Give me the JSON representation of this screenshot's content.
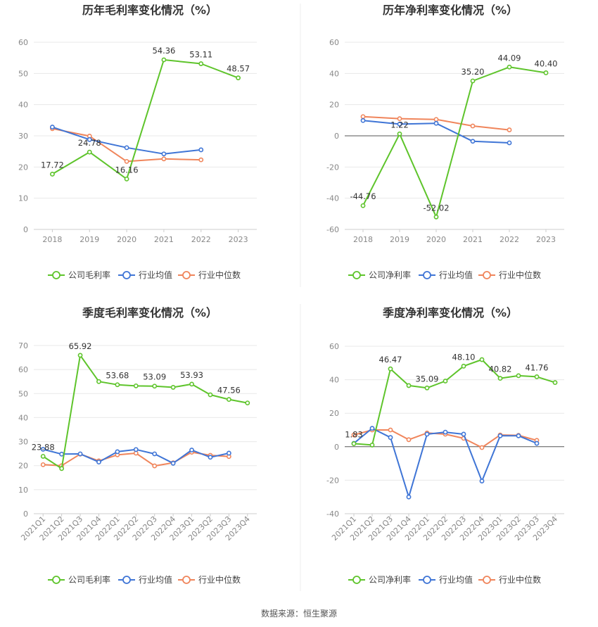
{
  "colors": {
    "company": "#5ec42b",
    "industry_avg": "#3f75d6",
    "industry_median": "#f0855b",
    "grid": "#e8e8e8",
    "zero_line": "#555555",
    "axis": "#cccccc"
  },
  "source": "数据来源：恒生聚源",
  "chart_data": [
    {
      "type": "line",
      "title": "历年毛利率变化情况（%）",
      "categories": [
        "2018",
        "2019",
        "2020",
        "2021",
        "2022",
        "2023"
      ],
      "ylim": [
        0,
        60
      ],
      "yticks": [
        0,
        10,
        20,
        30,
        40,
        50,
        60
      ],
      "grid": true,
      "legend_position": "bottom",
      "series": [
        {
          "name": "公司毛利率",
          "color": "#5ec42b",
          "values": [
            17.72,
            24.78,
            16.16,
            54.36,
            53.11,
            48.57
          ],
          "labels": [
            "17.72",
            "24.78",
            "16.16",
            "54.36",
            "53.11",
            "48.57"
          ]
        },
        {
          "name": "行业均值",
          "color": "#3f75d6",
          "values": [
            32.8,
            28.8,
            26.2,
            24.2,
            25.5,
            null
          ]
        },
        {
          "name": "行业中位数",
          "color": "#f0855b",
          "values": [
            32.3,
            29.9,
            21.8,
            22.6,
            22.3,
            null
          ]
        }
      ]
    },
    {
      "type": "line",
      "title": "历年净利率变化情况（%）",
      "categories": [
        "2018",
        "2019",
        "2020",
        "2021",
        "2022",
        "2023"
      ],
      "ylim": [
        -60,
        60
      ],
      "yticks": [
        -60,
        -40,
        -20,
        0,
        20,
        40,
        60
      ],
      "grid": true,
      "legend_position": "bottom",
      "series": [
        {
          "name": "公司净利率",
          "color": "#5ec42b",
          "values": [
            -44.76,
            1.22,
            -52.02,
            35.2,
            44.09,
            40.4
          ],
          "labels": [
            "-44.76",
            "1.22",
            "-52.02",
            "35.20",
            "44.09",
            "40.40"
          ]
        },
        {
          "name": "行业均值",
          "color": "#3f75d6",
          "values": [
            9.8,
            7.5,
            8.0,
            -3.5,
            -4.5,
            null
          ]
        },
        {
          "name": "行业中位数",
          "color": "#f0855b",
          "values": [
            12.3,
            11.0,
            10.5,
            6.3,
            3.8,
            null
          ]
        }
      ]
    },
    {
      "type": "line",
      "title": "季度毛利率变化情况（%）",
      "categories": [
        "2021Q1",
        "2021Q2",
        "2021Q3",
        "2021Q4",
        "2022Q1",
        "2022Q2",
        "2022Q3",
        "2022Q4",
        "2023Q1",
        "2023Q2",
        "2023Q3",
        "2023Q4"
      ],
      "ylim": [
        0,
        70
      ],
      "yticks": [
        0,
        10,
        20,
        30,
        40,
        50,
        60,
        70
      ],
      "grid": true,
      "legend_position": "bottom",
      "series": [
        {
          "name": "公司毛利率",
          "color": "#5ec42b",
          "values": [
            23.88,
            18.8,
            65.92,
            55.0,
            53.68,
            53.2,
            53.09,
            52.6,
            53.93,
            49.5,
            47.56,
            46.1
          ],
          "labels": [
            "23.88",
            "",
            "65.92",
            "",
            "53.68",
            "",
            "53.09",
            "",
            "53.93",
            "",
            "47.56",
            ""
          ]
        },
        {
          "name": "行业均值",
          "color": "#3f75d6",
          "values": [
            26.8,
            24.8,
            24.9,
            21.5,
            25.8,
            26.7,
            24.9,
            21.0,
            26.5,
            23.5,
            25.2,
            null
          ]
        },
        {
          "name": "行业中位数",
          "color": "#f0855b",
          "values": [
            20.4,
            20.0,
            24.8,
            22.0,
            24.5,
            25.2,
            19.9,
            21.2,
            25.6,
            24.3,
            23.8,
            null
          ]
        }
      ]
    },
    {
      "type": "line",
      "title": "季度净利率变化情况（%）",
      "categories": [
        "2021Q1",
        "2021Q2",
        "2021Q3",
        "2021Q4",
        "2022Q1",
        "2022Q2",
        "2022Q3",
        "2022Q4",
        "2023Q1",
        "2023Q2",
        "2023Q3",
        "2023Q4"
      ],
      "ylim": [
        -40,
        60
      ],
      "yticks": [
        -40,
        -20,
        0,
        20,
        40,
        60
      ],
      "grid": true,
      "legend_position": "bottom",
      "series": [
        {
          "name": "公司净利率",
          "color": "#5ec42b",
          "values": [
            1.83,
            1.0,
            46.47,
            36.5,
            35.09,
            39.2,
            48.1,
            52.0,
            40.82,
            42.4,
            41.76,
            38.3
          ],
          "labels": [
            "1.83",
            "",
            "46.47",
            "",
            "35.09",
            "",
            "48.10",
            "",
            "40.82",
            "",
            "41.76",
            ""
          ]
        },
        {
          "name": "行业均值",
          "color": "#3f75d6",
          "values": [
            2.0,
            11.0,
            5.5,
            -30.0,
            7.5,
            8.7,
            7.5,
            -20.5,
            6.5,
            6.5,
            2.0,
            null
          ]
        },
        {
          "name": "行业中位数",
          "color": "#f0855b",
          "values": [
            7.0,
            10.0,
            10.0,
            4.2,
            8.2,
            7.5,
            5.0,
            -0.5,
            7.0,
            6.8,
            3.8,
            null
          ]
        }
      ]
    }
  ]
}
